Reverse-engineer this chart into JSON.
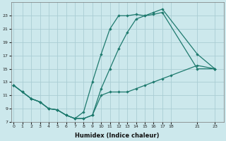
{
  "xlabel": "Humidex (Indice chaleur)",
  "bg_color": "#cce8ec",
  "grid_color": "#aacdd4",
  "line_color": "#1e7a6e",
  "line1_x": [
    0,
    1,
    2,
    3,
    4,
    5,
    6,
    7,
    8,
    9,
    10,
    11,
    12,
    13,
    14,
    15,
    16,
    17,
    18,
    21,
    23
  ],
  "line1_y": [
    12.5,
    11.5,
    10.5,
    10.0,
    9.0,
    8.8,
    8.0,
    7.5,
    7.5,
    8.0,
    11.0,
    11.5,
    11.5,
    11.5,
    12.0,
    12.5,
    13.0,
    13.5,
    14.0,
    15.5,
    15.0
  ],
  "line2_x": [
    0,
    1,
    2,
    3,
    4,
    5,
    6,
    7,
    8,
    9,
    10,
    11,
    12,
    13,
    14,
    15,
    16,
    17,
    21,
    23
  ],
  "line2_y": [
    12.5,
    11.5,
    10.5,
    10.0,
    9.0,
    8.8,
    8.0,
    7.5,
    8.5,
    13.0,
    17.2,
    21.0,
    23.0,
    23.0,
    23.2,
    23.0,
    23.5,
    24.0,
    17.2,
    15.0
  ],
  "line3_x": [
    0,
    1,
    2,
    3,
    4,
    5,
    6,
    7,
    8,
    9,
    10,
    11,
    12,
    13,
    14,
    15,
    16,
    17,
    21,
    23
  ],
  "line3_y": [
    12.5,
    11.5,
    10.5,
    10.0,
    9.0,
    8.8,
    8.0,
    7.5,
    7.5,
    8.0,
    12.0,
    15.0,
    18.0,
    20.5,
    22.5,
    23.0,
    23.2,
    23.5,
    15.0,
    15.0
  ],
  "xlim": [
    -0.3,
    24.0
  ],
  "ylim": [
    7,
    25.0
  ],
  "xticks": [
    0,
    1,
    2,
    3,
    4,
    5,
    6,
    7,
    8,
    9,
    10,
    11,
    12,
    13,
    14,
    15,
    16,
    17,
    18,
    21,
    23
  ],
  "yticks": [
    7,
    9,
    11,
    13,
    15,
    17,
    19,
    21,
    23
  ]
}
